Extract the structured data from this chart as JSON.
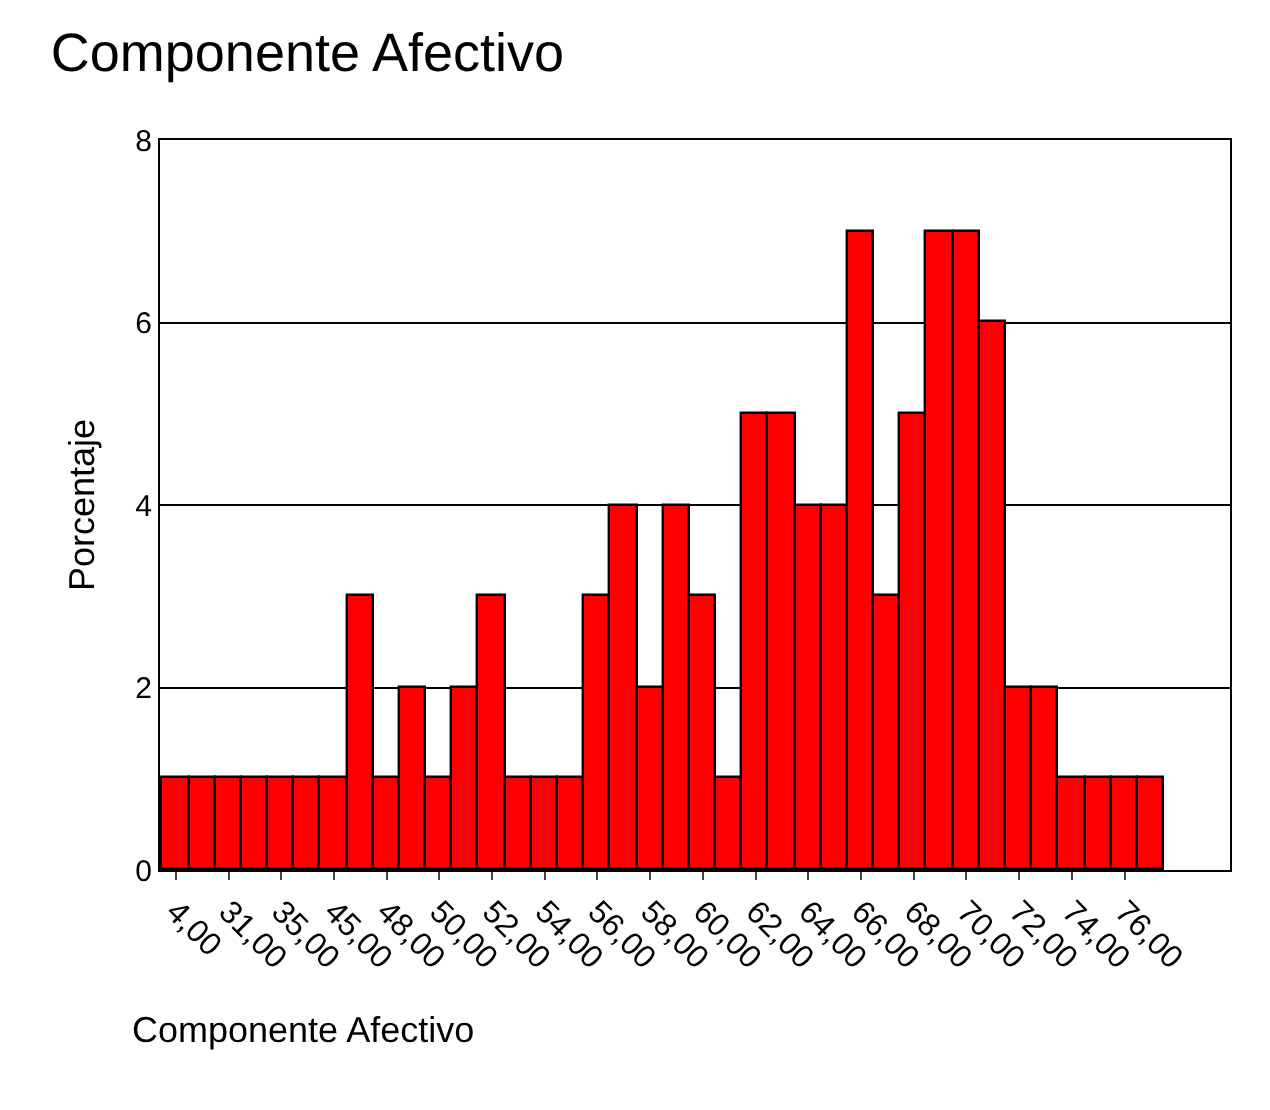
{
  "chart_data": {
    "type": "bar",
    "title": "Componente Afectivo",
    "xlabel": "Componente Afectivo",
    "ylabel": "Porcentaje",
    "categories": [
      "4,00",
      null,
      "31,00",
      null,
      "35,00",
      null,
      "45,00",
      null,
      "48,00",
      null,
      "50,00",
      null,
      "52,00",
      null,
      "54,00",
      null,
      "56,00",
      null,
      "58,00",
      null,
      "60,00",
      null,
      "62,00",
      null,
      "64,00",
      null,
      "66,00",
      null,
      "68,00",
      null,
      "70,00",
      null,
      "72,00",
      null,
      "74,00",
      null,
      "76,00",
      null
    ],
    "values": [
      1,
      1,
      1,
      1,
      1,
      1,
      1,
      3,
      1,
      2,
      1,
      2,
      3,
      1,
      1,
      1,
      3,
      4,
      2,
      4,
      3,
      1,
      5,
      5,
      4,
      4,
      7,
      3,
      5,
      7,
      7,
      6,
      2,
      2,
      1,
      1,
      1,
      1
    ],
    "color": "#ff0000",
    "ylim": [
      0,
      8
    ],
    "yticks": [
      0,
      2,
      4,
      6,
      8
    ],
    "grid": "y",
    "legend": false
  }
}
